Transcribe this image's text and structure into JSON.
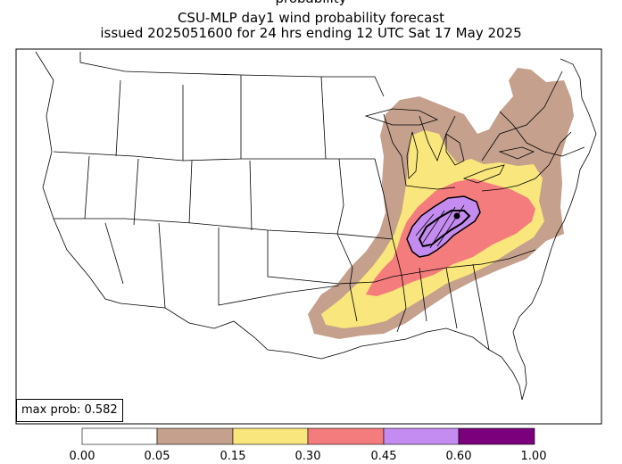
{
  "title": {
    "line0": "probability",
    "line1": "CSU-MLP day1 wind probability forecast",
    "line2": "issued 2025051600 for 24 hrs ending 12 UTC Sat 17 May 2025"
  },
  "max_prob_label": "max prob: 0.582",
  "legend": {
    "levels": [
      {
        "label": "0.00",
        "color": "#ffffff"
      },
      {
        "label": "0.05",
        "color": "#c4a08d"
      },
      {
        "label": "0.15",
        "color": "#f9e67c"
      },
      {
        "label": "0.30",
        "color": "#f57c7c"
      },
      {
        "label": "0.45",
        "color": "#c48cf0"
      },
      {
        "label": "0.60",
        "color": "#7b007b"
      },
      {
        "label": "1.00",
        "color": null
      }
    ]
  },
  "colors": {
    "p05": "#c4a08d",
    "p15": "#f9e67c",
    "p30": "#f57c7c",
    "p45": "#c48cf0",
    "border": "#000000"
  }
}
